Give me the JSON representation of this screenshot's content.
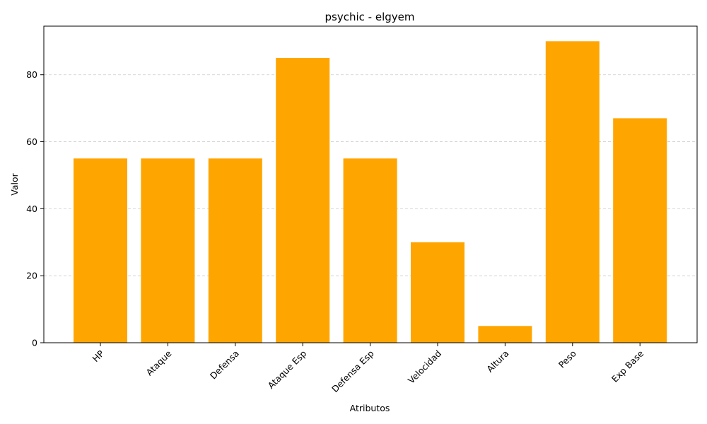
{
  "chart_data": {
    "type": "bar",
    "title": "psychic - elgyem",
    "xlabel": "Atributos",
    "ylabel": "Valor",
    "categories": [
      "HP",
      "Ataque",
      "Defensa",
      "Ataque Esp",
      "Defensa Esp",
      "Velocidad",
      "Altura",
      "Peso",
      "Exp Base"
    ],
    "values": [
      55,
      55,
      55,
      85,
      55,
      30,
      5,
      90,
      67
    ],
    "ylim": [
      0,
      94.5
    ],
    "yticks": [
      0,
      20,
      40,
      60,
      80
    ],
    "grid": "y-dashed",
    "legend": "none",
    "bar_color": "#ffa500",
    "grid_color": "#cccccc",
    "x_tick_rotation_deg": 45
  }
}
